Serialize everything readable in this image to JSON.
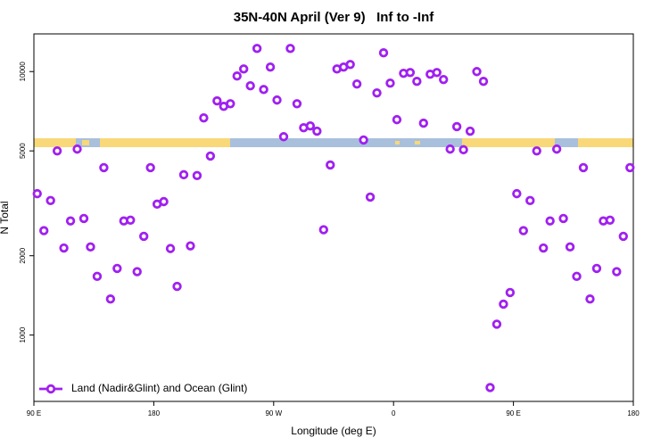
{
  "chart_data": {
    "type": "scatter",
    "title": "35N-40N April (Ver 9)   Inf to -Inf",
    "xlabel": "Longitude (deg E)",
    "ylabel": "N Total",
    "ylog": true,
    "xlim": [
      90,
      540
    ],
    "ylim": [
      560,
      13900
    ],
    "xticks": [
      {
        "value": 90,
        "label": "90 E"
      },
      {
        "value": 180,
        "label": "180"
      },
      {
        "value": 270,
        "label": "90 W"
      },
      {
        "value": 360,
        "label": "0"
      },
      {
        "value": 450,
        "label": "90 E"
      },
      {
        "value": 540,
        "label": "180"
      }
    ],
    "yticks": [
      1000,
      2000,
      5000,
      10000
    ],
    "legend_position": "bottomleft",
    "x": [
      92.5,
      97.5,
      102.5,
      107.5,
      112.5,
      117.5,
      122.5,
      127.5,
      132.5,
      137.5,
      142.5,
      147.5,
      152.5,
      157.5,
      162.5,
      167.5,
      172.5,
      177.5,
      182.5,
      187.5,
      192.5,
      197.5,
      202.5,
      207.5,
      212.5,
      217.5,
      222.5,
      227.5,
      232.5,
      237.5,
      242.5,
      247.5,
      252.5,
      257.5,
      262.5,
      267.5,
      272.5,
      277.5,
      282.5,
      287.5,
      292.5,
      297.5,
      302.5,
      307.5,
      312.5,
      317.5,
      322.5,
      327.5,
      332.5,
      337.5,
      342.5,
      347.5,
      352.5,
      357.5,
      362.5,
      367.5,
      372.5,
      377.5,
      382.5,
      387.5,
      392.5,
      397.5,
      402.5,
      407.5,
      412.5,
      417.5,
      422.5,
      427.5,
      432.5,
      437.5,
      442.5,
      447.5,
      452.5,
      457.5,
      462.5,
      467.5,
      472.5,
      477.5,
      482.5,
      487.5,
      492.5,
      497.5,
      502.5,
      507.5,
      512.5,
      517.5,
      522.5,
      527.5,
      532.5,
      537.5
    ],
    "series": [
      {
        "name": "Land (Nadir&Glint) and Ocean (Glint)",
        "color": "#a020f0",
        "values": [
          3440,
          2490,
          3240,
          5000,
          2140,
          2710,
          5080,
          2770,
          2160,
          1670,
          4320,
          1370,
          1790,
          2710,
          2730,
          1740,
          2370,
          4320,
          3140,
          3210,
          2130,
          1530,
          4060,
          2180,
          4030,
          6670,
          4780,
          7740,
          7380,
          7550,
          9620,
          10230,
          8830,
          12240,
          8550,
          10400,
          7800,
          5660,
          12240,
          7550,
          6120,
          6220,
          5940,
          2510,
          4420,
          10230,
          10400,
          10640,
          8970,
          5500,
          3340,
          8300,
          11780,
          9040,
          6570,
          9850,
          9920,
          9180,
          6370,
          9770,
          9920,
          9330,
          5080,
          6180,
          5050,
          5940,
          10000,
          9180,
          632,
          1100,
          1310,
          1450,
          3440,
          2490,
          3240,
          5000,
          2140,
          2710,
          5080,
          2770,
          2160,
          1670,
          4320,
          1370,
          1790,
          2710,
          2730,
          1740,
          2370,
          4320
        ]
      }
    ]
  }
}
